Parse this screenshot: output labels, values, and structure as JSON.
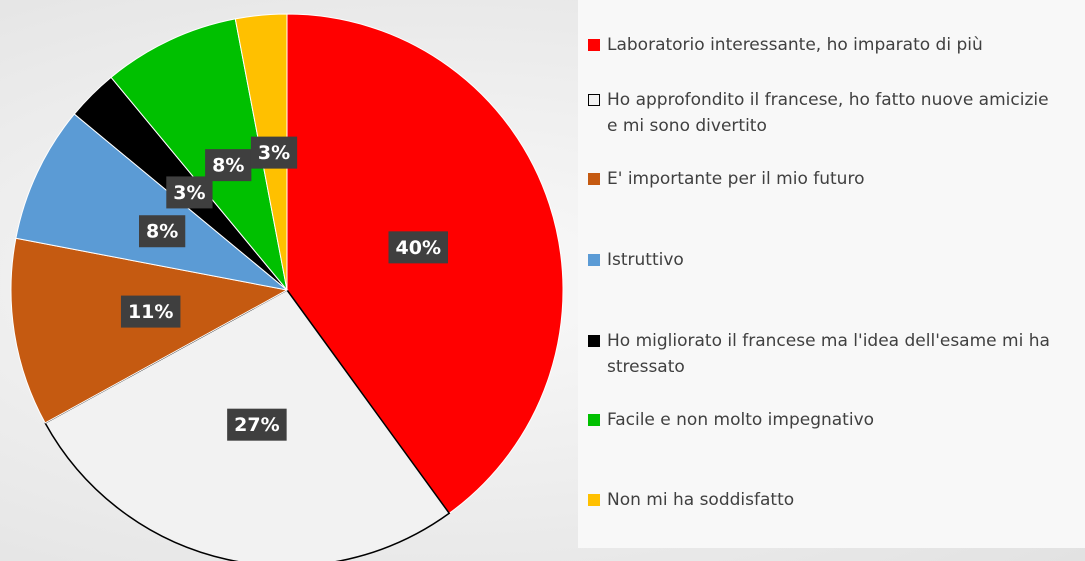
{
  "chart_data": {
    "type": "pie",
    "categories": [
      "Laboratorio interessante, ho imparato di più",
      "Ho approfondito il francese, ho fatto nuove amicizie e mi sono divertito",
      "E' importante per il mio futuro",
      "Istruttivo",
      "Ho migliorato il francese ma l'idea dell'esame mi ha stressato",
      "Facile e non molto impegnativo",
      "Non mi ha soddisfatto"
    ],
    "values": [
      40,
      27,
      11,
      8,
      3,
      8,
      3
    ],
    "value_labels": [
      "40%",
      "27%",
      "11%",
      "8%",
      "3%",
      "8%",
      "3%"
    ],
    "colors": [
      "#ff0000",
      "#f2f2f2",
      "#c55a11",
      "#5b9bd5",
      "#000000",
      "#00c000",
      "#ffc000"
    ],
    "legend": "right"
  }
}
